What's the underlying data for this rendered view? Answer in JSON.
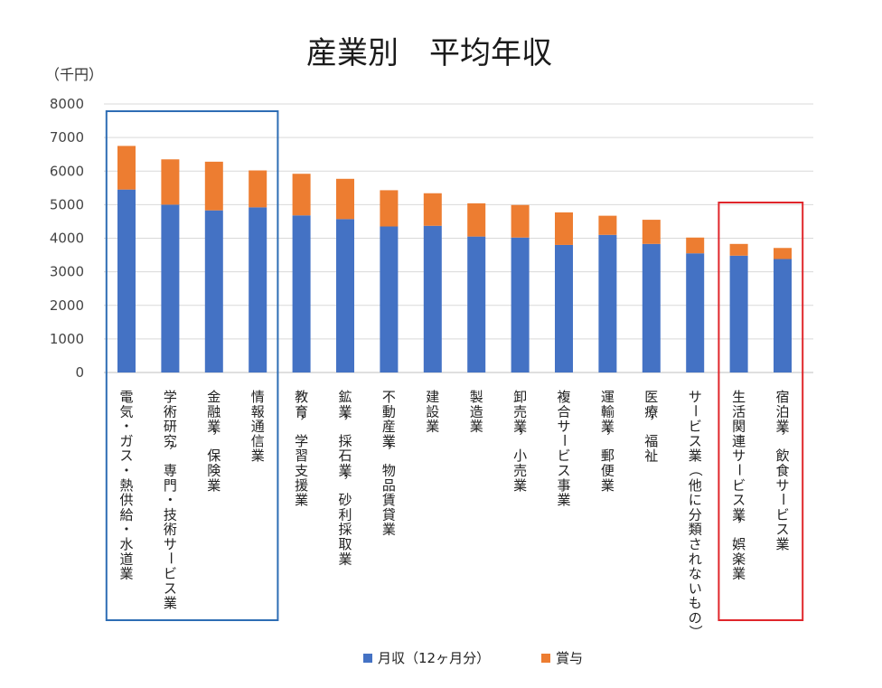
{
  "chart_data": {
    "type": "bar",
    "stacked": true,
    "title": "産業別　平均年収",
    "unit_label": "（千円）",
    "ylim": [
      0,
      8000
    ],
    "yticks": [
      "0",
      "1000",
      "2000",
      "3000",
      "4000",
      "5000",
      "6000",
      "7000",
      "8000"
    ],
    "grid": true,
    "legend_position": "bottom",
    "categories": [
      "電気・ガス・熱供給・水道業",
      "学術研究，専門・技術サービス業",
      "金融業，保険業",
      "情報通信業",
      "教育，学習支援業",
      "鉱業，採石業，砂利採取業",
      "不動産業，物品賃貸業",
      "建設業",
      "製造業",
      "卸売業，小売業",
      "複合サービス事業",
      "運輸業，郵便業",
      "医療，福祉",
      "サービス業（他に分類されないもの）",
      "生活関連サービス業，娯楽業",
      "宿泊業，飲食サービス業"
    ],
    "series": [
      {
        "name": "月収（12ヶ月分）",
        "color": "#4472c4",
        "values": [
          5450,
          5000,
          4830,
          4920,
          4680,
          4570,
          4350,
          4370,
          4050,
          4020,
          3800,
          4100,
          3830,
          3550,
          3480,
          3380
        ]
      },
      {
        "name": "賞与",
        "color": "#ed7d31",
        "values": [
          1300,
          1350,
          1450,
          1100,
          1240,
          1200,
          1080,
          970,
          990,
          970,
          970,
          570,
          720,
          470,
          350,
          330
        ]
      }
    ],
    "highlight_groups": [
      {
        "color": "#2e6db4",
        "from": 0,
        "to": 3
      },
      {
        "color": "#e0262b",
        "from": 14,
        "to": 15
      }
    ]
  }
}
